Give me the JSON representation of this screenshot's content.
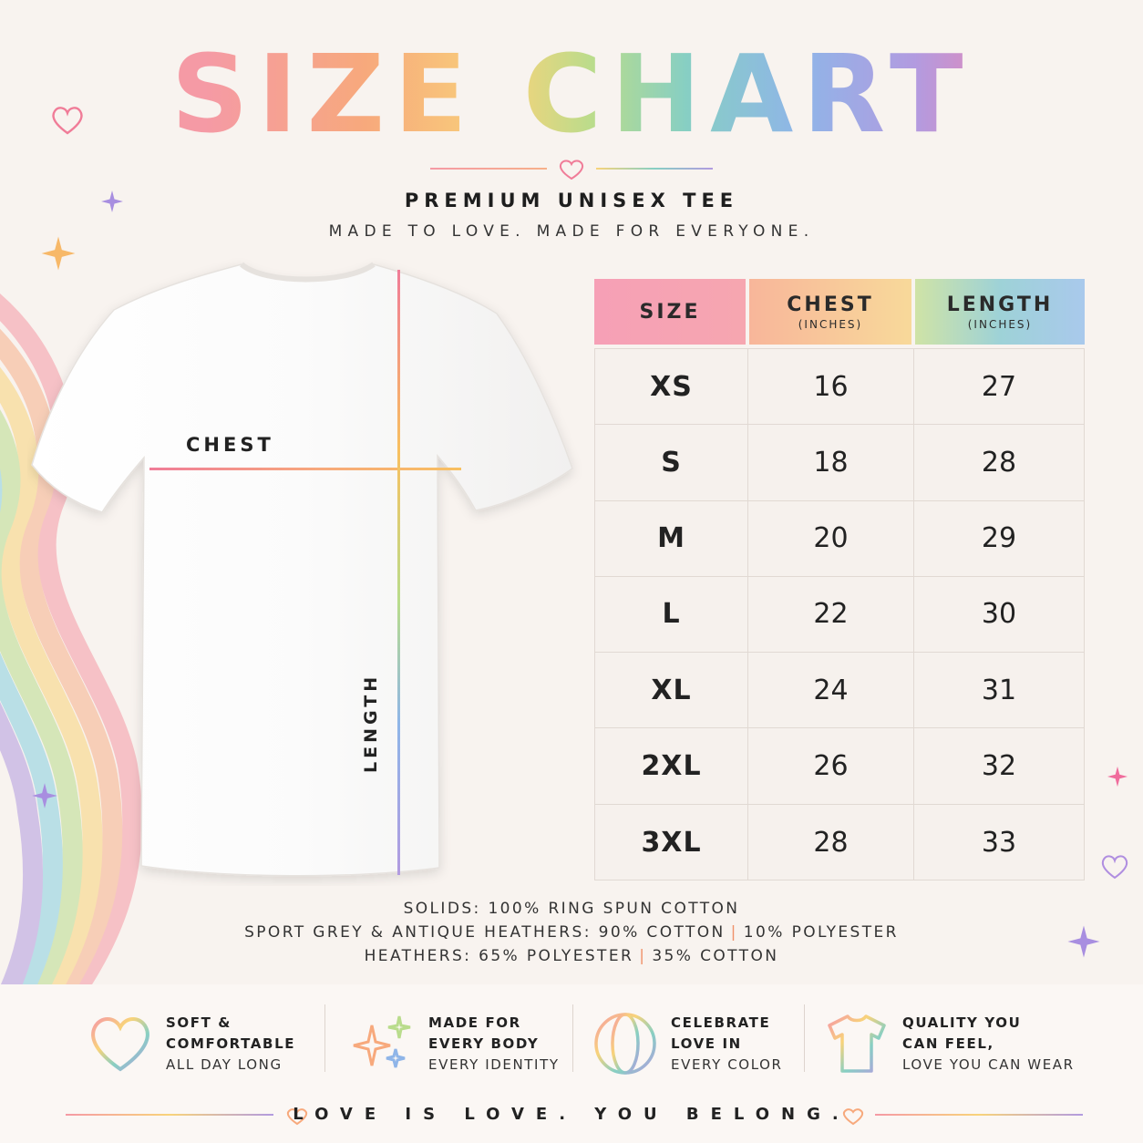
{
  "header": {
    "title": "SIZE CHART",
    "subtitle": "PREMIUM UNISEX TEE",
    "tagline": "MADE TO LOVE. MADE FOR EVERYONE."
  },
  "shirt": {
    "chest_label": "CHEST",
    "length_label": "LENGTH"
  },
  "table": {
    "columns": [
      {
        "label": "SIZE",
        "unit": ""
      },
      {
        "label": "CHEST",
        "unit": "(INCHES)"
      },
      {
        "label": "LENGTH",
        "unit": "(INCHES)"
      }
    ],
    "rows": [
      {
        "size": "XS",
        "chest": "16",
        "length": "27"
      },
      {
        "size": "S",
        "chest": "18",
        "length": "28"
      },
      {
        "size": "M",
        "chest": "20",
        "length": "29"
      },
      {
        "size": "L",
        "chest": "22",
        "length": "30"
      },
      {
        "size": "XL",
        "chest": "24",
        "length": "31"
      },
      {
        "size": "2XL",
        "chest": "26",
        "length": "32"
      },
      {
        "size": "3XL",
        "chest": "28",
        "length": "33"
      }
    ]
  },
  "fabric": {
    "line1": "SOLIDS: 100% RING SPUN COTTON",
    "line2a": "SPORT GREY & ANTIQUE HEATHERS: 90% COTTON",
    "line2b": "10% POLYESTER",
    "line3a": "HEATHERS: 65% POLYESTER",
    "line3b": "35% COTTON",
    "separator": "|"
  },
  "features": [
    {
      "icon": "heart-icon",
      "line1": "SOFT &",
      "line2": "COMFORTABLE",
      "line3": "ALL DAY LONG"
    },
    {
      "icon": "sparkles-icon",
      "line1": "MADE FOR",
      "line2": "EVERY BODY",
      "line3": "EVERY IDENTITY"
    },
    {
      "icon": "globe-icon",
      "line1": "CELEBRATE",
      "line2": "LOVE IN",
      "line3": "EVERY COLOR"
    },
    {
      "icon": "tshirt-icon",
      "line1": "QUALITY YOU",
      "line2": "CAN FEEL,",
      "line3": "LOVE YOU CAN WEAR"
    }
  ],
  "footer": {
    "text": "LOVE IS LOVE. YOU BELONG."
  },
  "colors": {
    "background": "#f8f3ef",
    "rainbow": [
      "#f59aa5",
      "#f7a97c",
      "#f8d37a",
      "#b9dc8c",
      "#87cfc3",
      "#8fb5e8",
      "#b29be0"
    ]
  }
}
